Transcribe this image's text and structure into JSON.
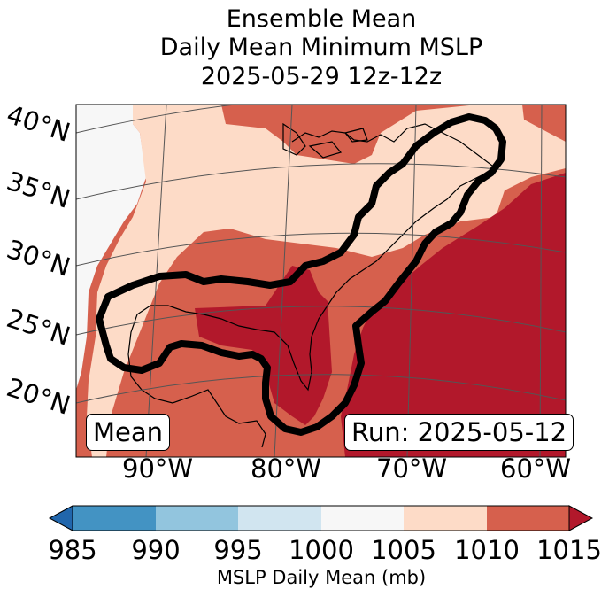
{
  "title": {
    "line1": "Ensemble Mean",
    "line2": "Daily Mean Minimum MSLP",
    "line3": "2025-05-29 12z-12z"
  },
  "map": {
    "lat_labels": [
      "40°N",
      "35°N",
      "30°N",
      "25°N",
      "20°N"
    ],
    "lon_labels": [
      "90°W",
      "80°W",
      "70°W",
      "60°W"
    ],
    "left_box": "Mean",
    "right_box": "Run: 2025-05-12",
    "region": "Gulf of Mexico, US East Coast and western Atlantic",
    "outline_color": "#000000"
  },
  "colorbar": {
    "label": "MSLP Daily Mean (mb)",
    "ticks": [
      "985",
      "990",
      "995",
      "1000",
      "1005",
      "1010",
      "1015"
    ],
    "colors": [
      "#2166ac",
      "#4393c3",
      "#92c5de",
      "#d1e5f0",
      "#f7f7f7",
      "#fddbc7",
      "#d6604d",
      "#b2182b"
    ]
  }
}
